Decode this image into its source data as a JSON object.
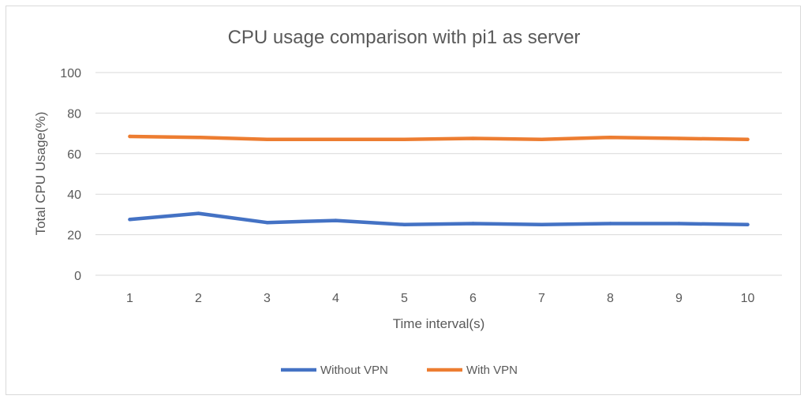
{
  "chart_data": {
    "type": "line",
    "title": "CPU usage comparison with pi1 as server",
    "xlabel": "Time interval(s)",
    "ylabel": "Total CPU Usage(%)",
    "ylim": [
      0,
      100
    ],
    "yticks": [
      0,
      20,
      40,
      60,
      80,
      100
    ],
    "categories": [
      "1",
      "2",
      "3",
      "4",
      "5",
      "6",
      "7",
      "8",
      "9",
      "10"
    ],
    "grid": true,
    "legend_position": "bottom",
    "series": [
      {
        "name": "Without VPN",
        "color": "#4472c4",
        "values": [
          27.5,
          30.5,
          26,
          27,
          25,
          25.5,
          25,
          25.5,
          25.5,
          25
        ]
      },
      {
        "name": "With VPN",
        "color": "#ed7d31",
        "values": [
          68.5,
          68,
          67,
          67,
          67,
          67.5,
          67,
          68,
          67.5,
          67
        ]
      }
    ]
  }
}
